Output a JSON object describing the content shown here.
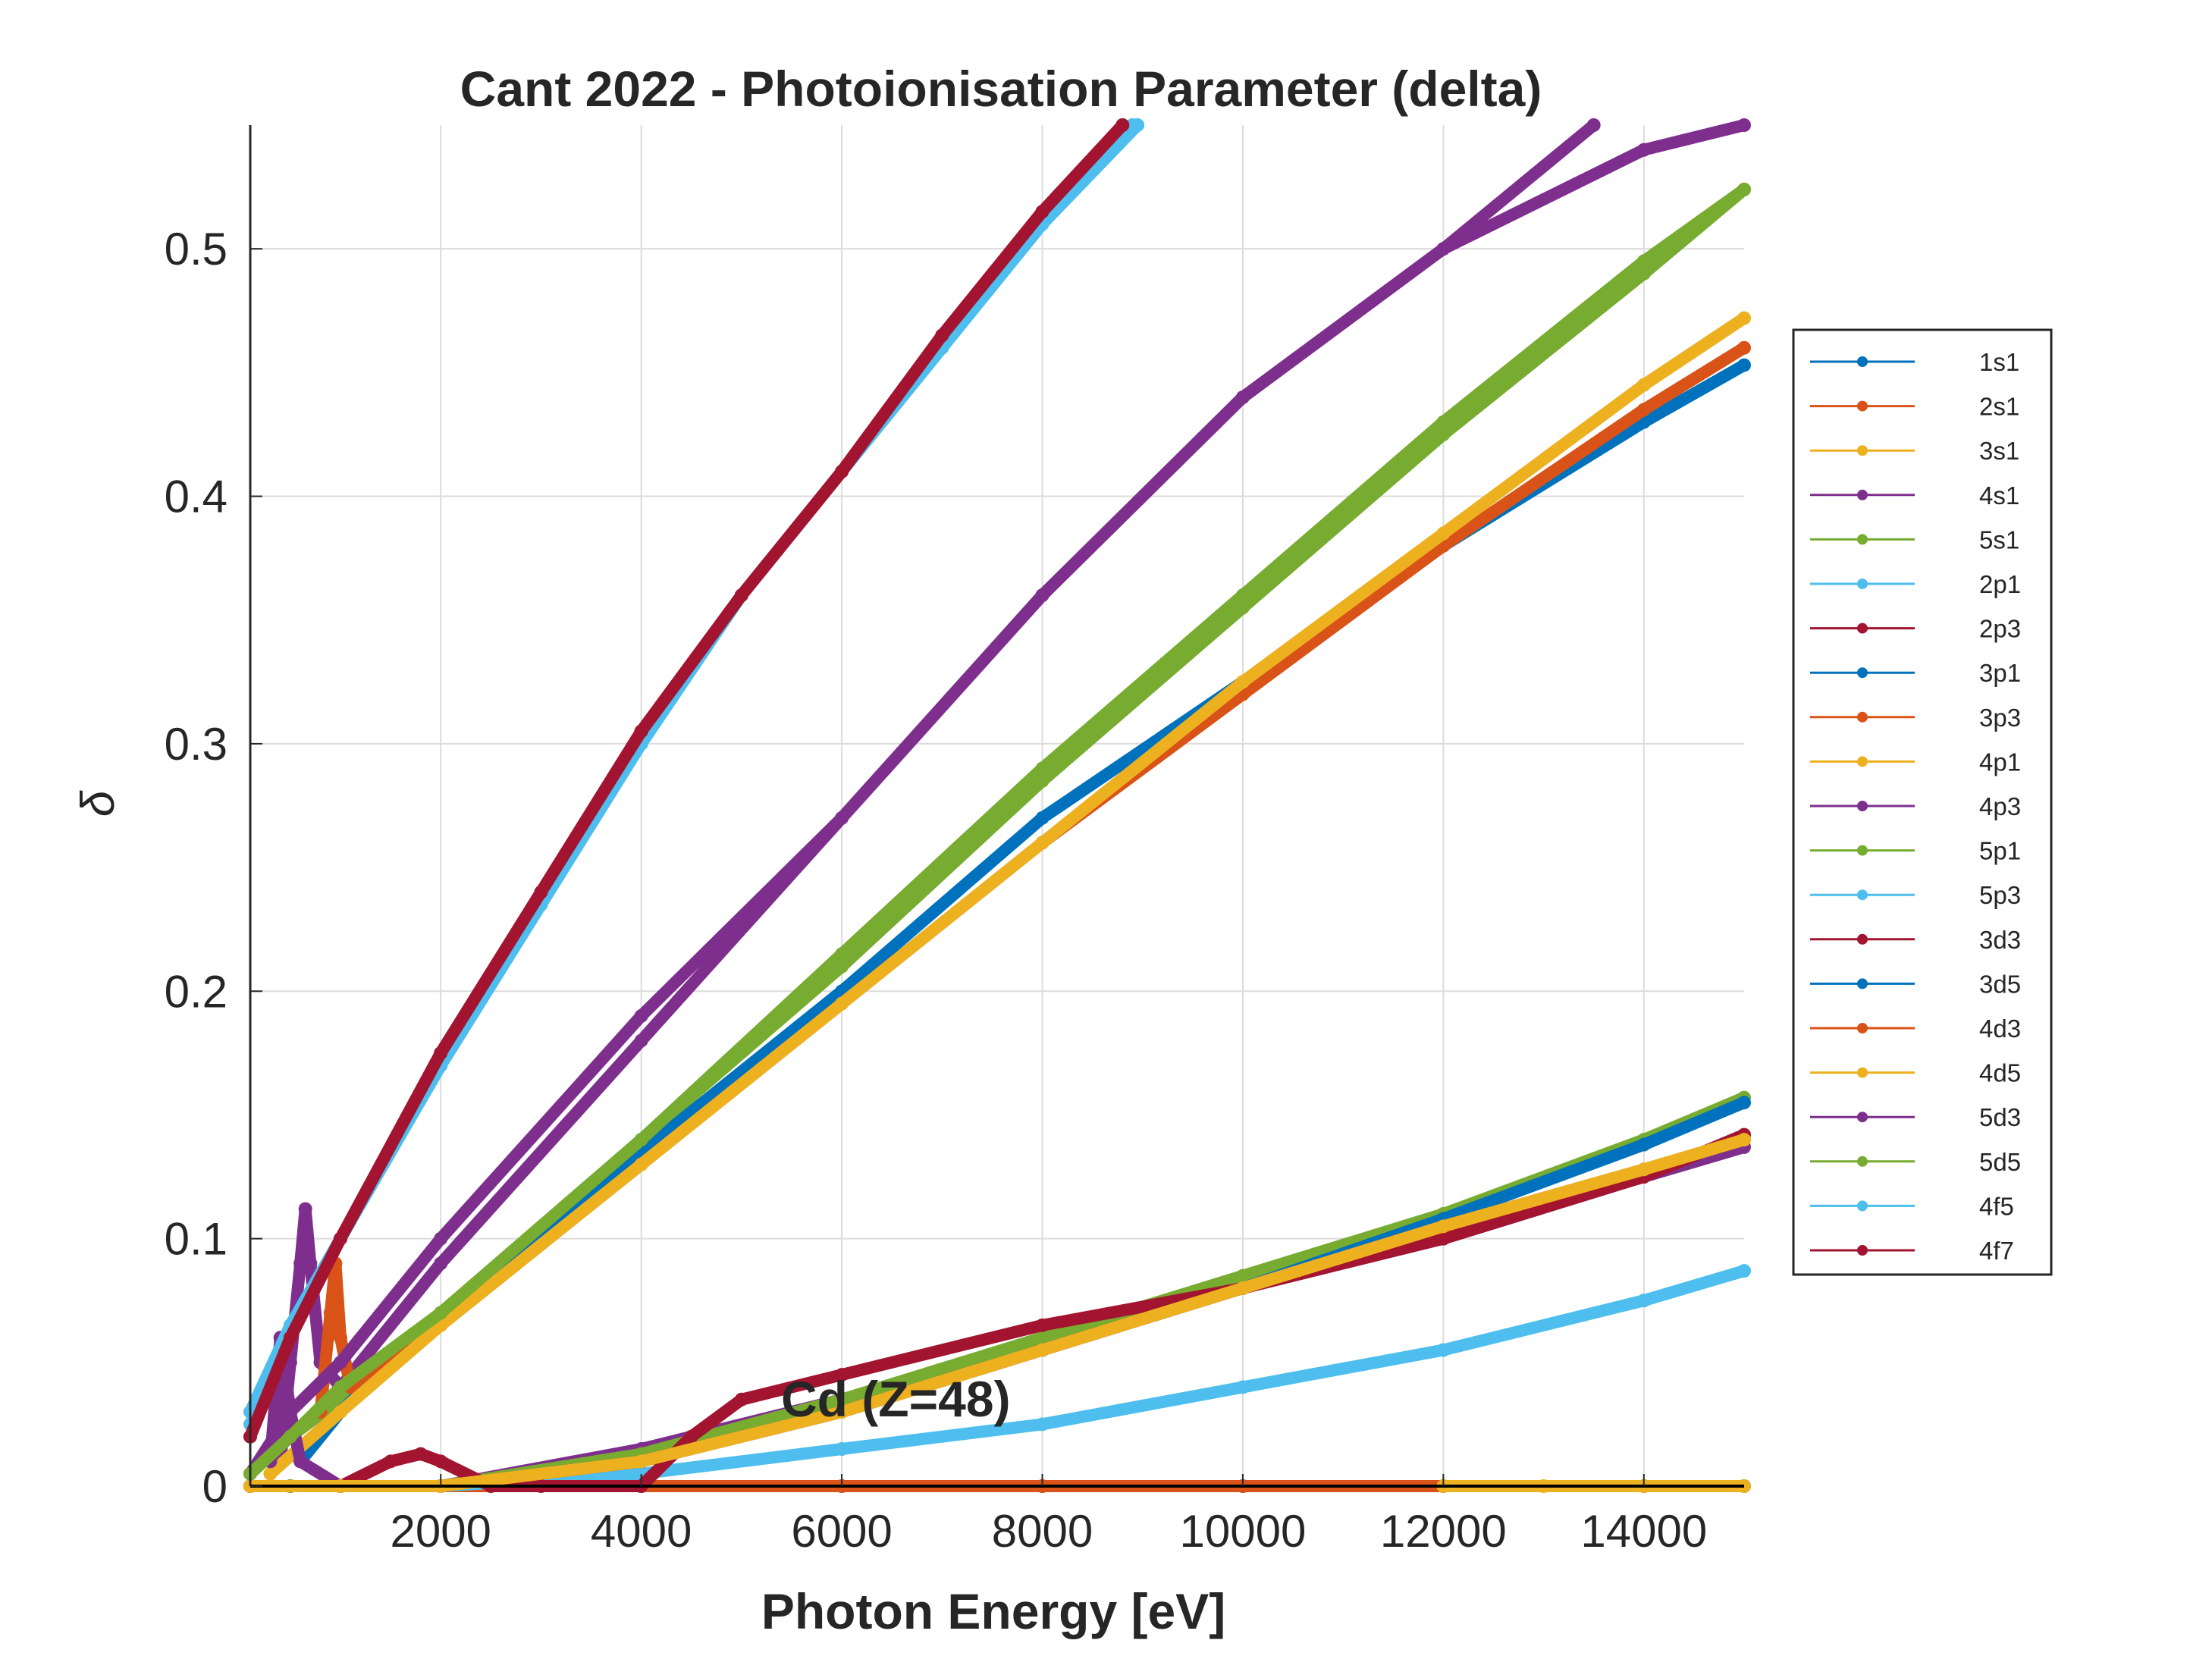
{
  "chart_data": {
    "type": "line",
    "title": "Cant 2022 - Photoionisation Parameter (delta)",
    "xlabel": "Photon Energy [eV]",
    "ylabel": "δ",
    "annotation": "Cd (Z=48)",
    "xlim": [
      100,
      15000
    ],
    "ylim": [
      0,
      0.55
    ],
    "xticks": [
      2000,
      4000,
      6000,
      8000,
      10000,
      12000,
      14000
    ],
    "yticks": [
      0,
      0.1,
      0.2,
      0.3,
      0.4,
      0.5
    ],
    "xtick_labels": [
      "2000",
      "4000",
      "6000",
      "8000",
      "10000",
      "12000",
      "14000"
    ],
    "ytick_labels": [
      "0",
      "0.1",
      "0.2",
      "0.3",
      "0.4",
      "0.5"
    ],
    "grid": true,
    "legend_position": "right-outside",
    "series": [
      {
        "name": "1s1",
        "color": "#0072BD",
        "x": [
          100,
          500,
          1000,
          2000,
          4000,
          6000,
          8000,
          10000,
          12000,
          14000,
          15000
        ],
        "y": [
          0,
          0,
          0,
          0,
          0,
          0,
          0,
          0,
          0,
          0,
          0
        ]
      },
      {
        "name": "2s1",
        "color": "#D95319",
        "x": [
          100,
          500,
          1000,
          2000,
          4000,
          6000,
          8000,
          10000,
          12000,
          14000,
          15000
        ],
        "y": [
          0,
          0,
          0,
          0,
          0,
          0,
          0,
          0,
          0,
          0,
          0
        ]
      },
      {
        "name": "3s1",
        "color": "#EDB120",
        "x": [
          12000,
          13000,
          14000,
          15000
        ],
        "y": [
          0,
          0,
          0,
          0
        ]
      },
      {
        "name": "4s1",
        "color": "#7E2F8E",
        "x": [
          400,
          500,
          600,
          650,
          700,
          800,
          1000,
          2000,
          4000,
          6000,
          8000,
          10000,
          12000,
          13500
        ],
        "y": [
          0.01,
          0.05,
          0.09,
          0.112,
          0.09,
          0.05,
          0.04,
          0.09,
          0.18,
          0.27,
          0.36,
          0.44,
          0.5,
          0.55
        ]
      },
      {
        "name": "5s1",
        "color": "#77AC30",
        "x": [
          100,
          500,
          1000,
          2000,
          4000,
          6000,
          8000,
          10000,
          12000,
          14000,
          15000
        ],
        "y": [
          0.005,
          0.02,
          0.035,
          0.07,
          0.14,
          0.21,
          0.285,
          0.355,
          0.425,
          0.49,
          0.524
        ]
      },
      {
        "name": "2p1",
        "color": "#4DBEEE",
        "x": [
          100,
          500,
          1000,
          2000,
          3000,
          4000,
          5000,
          6000,
          7000,
          8000,
          8900
        ],
        "y": [
          0.025,
          0.06,
          0.1,
          0.17,
          0.235,
          0.3,
          0.36,
          0.41,
          0.46,
          0.51,
          0.55
        ]
      },
      {
        "name": "2p3",
        "color": "#A2142F",
        "x": [
          100,
          500,
          1000,
          2000,
          3000,
          4000,
          5000,
          6000,
          7000,
          8000,
          8800
        ],
        "y": [
          0.02,
          0.06,
          0.1,
          0.175,
          0.24,
          0.305,
          0.36,
          0.41,
          0.465,
          0.515,
          0.55
        ]
      },
      {
        "name": "3p1",
        "color": "#0072BD",
        "x": [
          600,
          1000,
          2000,
          4000,
          6000,
          8000,
          10000,
          12000,
          14000,
          15000
        ],
        "y": [
          0.01,
          0.03,
          0.07,
          0.135,
          0.2,
          0.27,
          0.325,
          0.38,
          0.43,
          0.453
        ]
      },
      {
        "name": "3p3",
        "color": "#D95319",
        "x": [
          800,
          900,
          950,
          1000,
          1100,
          2000,
          4000,
          6000,
          8000,
          10000,
          12000,
          14000,
          15000
        ],
        "y": [
          0.03,
          0.07,
          0.09,
          0.06,
          0.04,
          0.065,
          0.13,
          0.195,
          0.26,
          0.32,
          0.38,
          0.435,
          0.46
        ]
      },
      {
        "name": "4p1",
        "color": "#EDB120",
        "x": [
          300,
          1000,
          2000,
          4000,
          6000,
          8000,
          10000,
          12000,
          14000,
          15000
        ],
        "y": [
          0.005,
          0.03,
          0.065,
          0.13,
          0.195,
          0.26,
          0.325,
          0.385,
          0.445,
          0.472
        ]
      },
      {
        "name": "4p3",
        "color": "#7E2F8E",
        "x": [
          300,
          400,
          500,
          600,
          1000,
          2000,
          4000,
          6000,
          8000,
          10000,
          12000,
          14000,
          15000
        ],
        "y": [
          0.01,
          0.06,
          0.03,
          0.01,
          0.0,
          0.0,
          0.015,
          0.035,
          0.055,
          0.08,
          0.1,
          0.125,
          0.137
        ]
      },
      {
        "name": "5p1",
        "color": "#77AC30",
        "x": [
          100,
          500,
          1000,
          2000,
          4000,
          6000,
          8000,
          10000,
          12000,
          14000,
          15000
        ],
        "y": [
          0,
          0,
          0,
          0.0,
          0.013,
          0.035,
          0.06,
          0.085,
          0.11,
          0.14,
          0.157
        ]
      },
      {
        "name": "5p3",
        "color": "#4DBEEE",
        "x": [
          100,
          1000,
          2000,
          4000,
          6000,
          8000,
          10000,
          12000,
          14000,
          15000
        ],
        "y": [
          0,
          0,
          0,
          0.005,
          0.015,
          0.025,
          0.04,
          0.055,
          0.075,
          0.087
        ]
      },
      {
        "name": "3d3",
        "color": "#A2142F",
        "x": [
          1000,
          1500,
          1800,
          2000,
          2500,
          3000,
          4000,
          4500,
          5000,
          6000,
          8000,
          10000,
          12000,
          14000,
          15000
        ],
        "y": [
          0.0,
          0.01,
          0.013,
          0.01,
          0.0,
          0.0,
          0.0,
          0.02,
          0.035,
          0.045,
          0.065,
          0.08,
          0.1,
          0.125,
          0.142
        ]
      },
      {
        "name": "3d5",
        "color": "#0072BD",
        "x": [
          100,
          1000,
          2000,
          4000,
          6000,
          8000,
          10000,
          12000,
          14000,
          15000
        ],
        "y": [
          0,
          0,
          0,
          0.01,
          0.03,
          0.055,
          0.08,
          0.108,
          0.138,
          0.155
        ]
      },
      {
        "name": "4d3",
        "color": "#D95319",
        "x": [
          100,
          1000,
          2000,
          4000,
          6000,
          8000,
          10000,
          12000,
          14000,
          15000
        ],
        "y": [
          0,
          0,
          0,
          0.01,
          0.03,
          0.055,
          0.08,
          0.105,
          0.128,
          0.14
        ]
      },
      {
        "name": "4d5",
        "color": "#EDB120",
        "x": [
          100,
          1000,
          2000,
          4000,
          6000,
          8000,
          10000,
          12000,
          14000,
          15000
        ],
        "y": [
          0,
          0,
          0,
          0.01,
          0.03,
          0.055,
          0.08,
          0.105,
          0.128,
          0.14
        ]
      },
      {
        "name": "5d3",
        "color": "#7E2F8E",
        "x": [
          100,
          500,
          1000,
          2000,
          4000,
          6000,
          8000,
          10000,
          12000,
          14000,
          15000
        ],
        "y": [
          0.005,
          0.03,
          0.05,
          0.1,
          0.19,
          0.27,
          0.36,
          0.44,
          0.5,
          0.54,
          0.55
        ]
      },
      {
        "name": "5d5",
        "color": "#77AC30",
        "x": [
          100,
          500,
          1000,
          2000,
          4000,
          6000,
          8000,
          10000,
          12000,
          14000,
          15000
        ],
        "y": [
          0.005,
          0.02,
          0.04,
          0.07,
          0.14,
          0.215,
          0.29,
          0.36,
          0.43,
          0.495,
          0.524
        ]
      },
      {
        "name": "4f5",
        "color": "#4DBEEE",
        "x": [
          100,
          500,
          1000,
          2000,
          3000,
          4000,
          5000,
          6000,
          7000,
          8000,
          8950
        ],
        "y": [
          0.03,
          0.065,
          0.1,
          0.17,
          0.235,
          0.3,
          0.36,
          0.41,
          0.46,
          0.51,
          0.55
        ]
      },
      {
        "name": "4f7",
        "color": "#A2142F",
        "x": [
          100,
          500,
          1000,
          2000,
          3000,
          4000,
          5000,
          6000,
          7000,
          8000,
          8800
        ],
        "y": [
          0.02,
          0.06,
          0.1,
          0.175,
          0.24,
          0.305,
          0.36,
          0.41,
          0.465,
          0.515,
          0.55
        ]
      }
    ]
  }
}
